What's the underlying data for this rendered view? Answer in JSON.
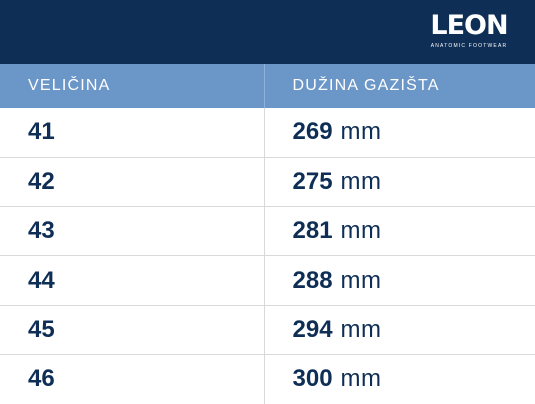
{
  "brand": {
    "name": "LEON",
    "tagline": "ANATOMIC FOOTWEAR",
    "header_color": "#0f2e55",
    "accent_color": "#6b96c8"
  },
  "table": {
    "headers": [
      "VELIČINA",
      "DUŽINA GAZIŠTA"
    ],
    "rows": [
      {
        "size": "41",
        "length": "269",
        "unit": "mm"
      },
      {
        "size": "42",
        "length": "275",
        "unit": "mm"
      },
      {
        "size": "43",
        "length": "281",
        "unit": "mm"
      },
      {
        "size": "44",
        "length": "288",
        "unit": "mm"
      },
      {
        "size": "45",
        "length": "294",
        "unit": "mm"
      },
      {
        "size": "46",
        "length": "300",
        "unit": "mm"
      }
    ]
  }
}
